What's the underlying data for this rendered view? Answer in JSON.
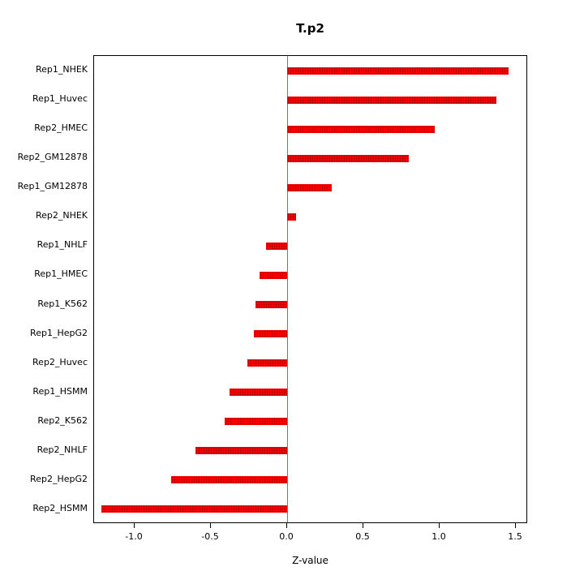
{
  "chart_data": {
    "type": "bar",
    "orientation": "horizontal",
    "title": "T.p2",
    "xlabel": "Z-value",
    "ylabel": "",
    "categories": [
      "Rep1_NHEK",
      "Rep1_Huvec",
      "Rep2_HMEC",
      "Rep2_GM12878",
      "Rep1_GM12878",
      "Rep2_NHEK",
      "Rep1_NHLF",
      "Rep1_HMEC",
      "Rep1_K562",
      "Rep1_HepG2",
      "Rep2_Huvec",
      "Rep1_HSMM",
      "Rep2_K562",
      "Rep2_NHLF",
      "Rep2_HepG2",
      "Rep2_HSMM"
    ],
    "values": [
      1.45,
      1.37,
      0.97,
      0.8,
      0.29,
      0.06,
      -0.14,
      -0.18,
      -0.21,
      -0.22,
      -0.26,
      -0.38,
      -0.41,
      -0.6,
      -0.76,
      -1.22
    ],
    "xlim": [
      -1.266,
      1.58
    ],
    "xticks": [
      -1.0,
      -0.5,
      0.0,
      0.5,
      1.0,
      1.5
    ],
    "xtick_labels": [
      "-1.0",
      "-0.5",
      "0.0",
      "0.5",
      "1.0",
      "1.5"
    ],
    "grid": false,
    "legend": "none",
    "bar_color": "#ff0000",
    "zero_line_color": "#00cc00",
    "zero_line_x": 0.0
  }
}
